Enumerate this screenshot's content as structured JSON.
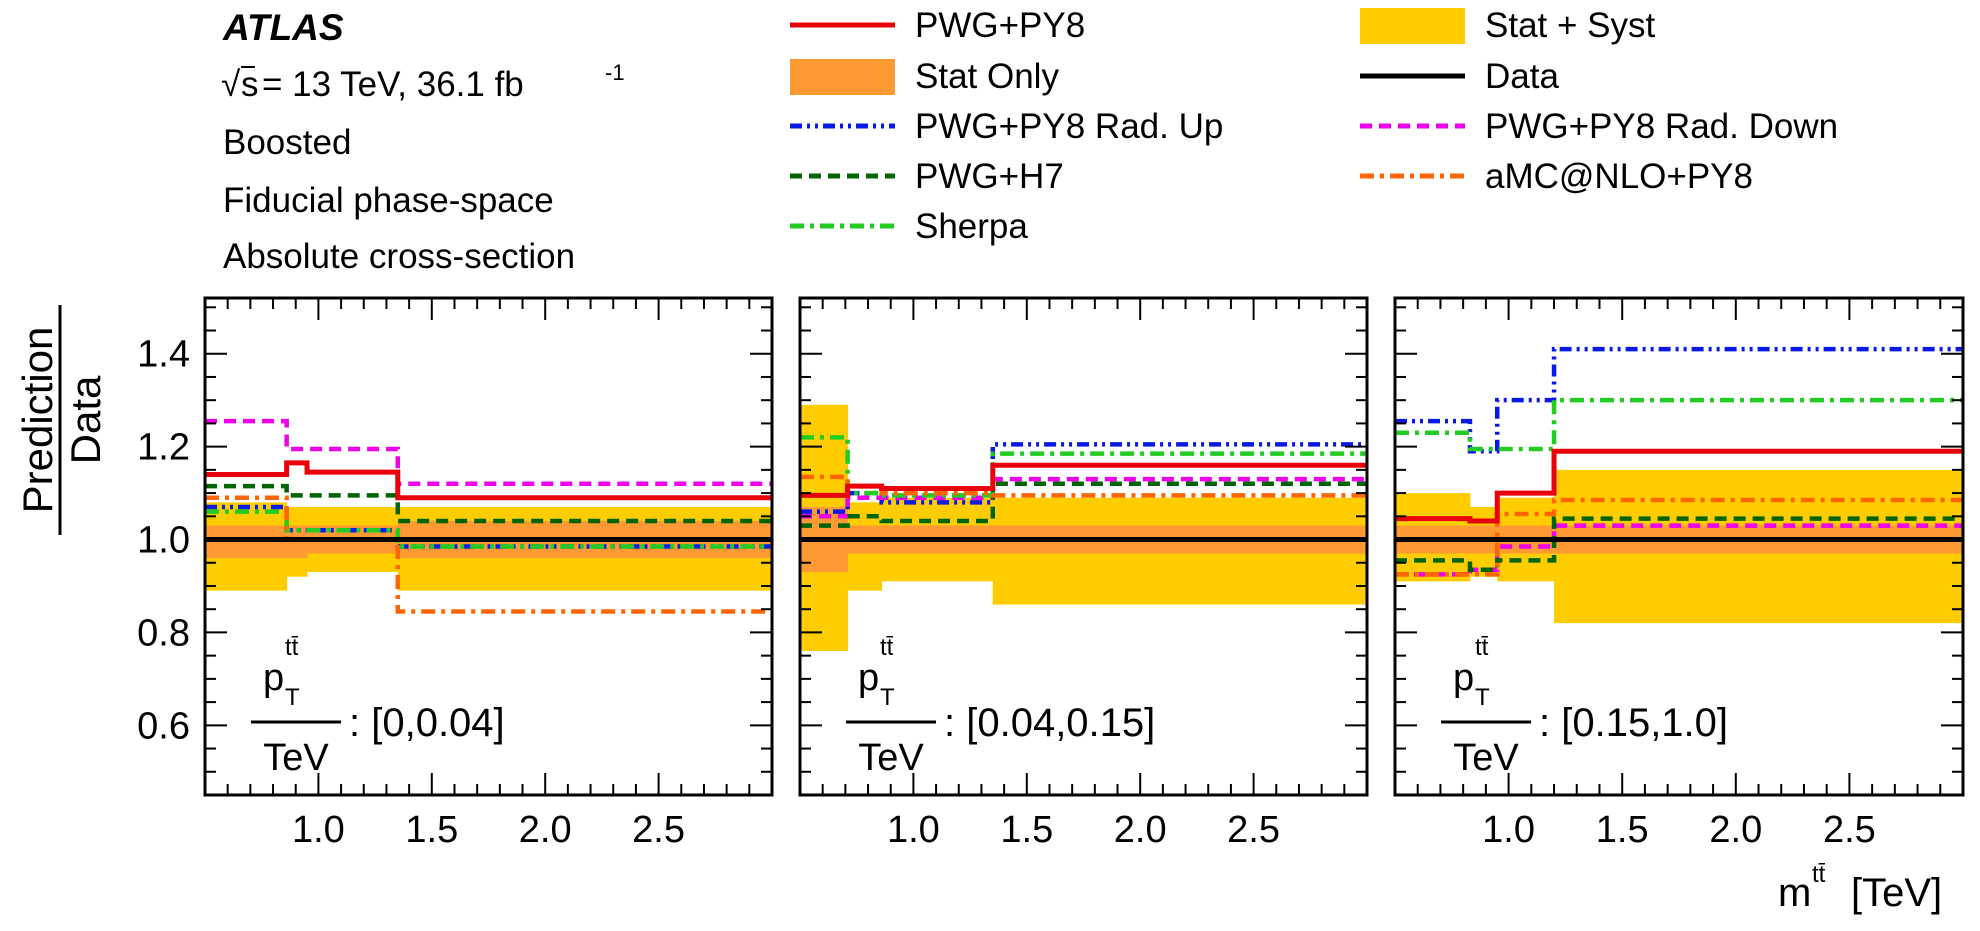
{
  "header": {
    "experiment": "ATLAS",
    "energy_prefix": "s",
    "energy_text": "= 13 TeV, 36.1 fb",
    "energy_exp": "-1",
    "lines": [
      "Boosted",
      "Fiducial phase-space",
      "Absolute cross-section"
    ]
  },
  "legend": [
    {
      "label": "PWG+PY8",
      "style": "solid",
      "color": "#e8000b"
    },
    {
      "label": "Stat Only",
      "style": "band",
      "color": "#ff9933"
    },
    {
      "label": "PWG+PY8 Rad. Up",
      "style": "dashdotdot",
      "color": "#0a1ae6"
    },
    {
      "label": "PWG+H7",
      "style": "dashed",
      "color": "#006400"
    },
    {
      "label": "Sherpa",
      "style": "dashdot",
      "color": "#22cc22"
    },
    {
      "label": "Stat + Syst",
      "style": "band",
      "color": "#ffcc00"
    },
    {
      "label": "Data",
      "style": "solid",
      "color": "#000000"
    },
    {
      "label": "PWG+PY8 Rad. Down",
      "style": "dashed",
      "color": "#ee00ee"
    },
    {
      "label": "aMC@NLO+PY8",
      "style": "dashdot",
      "color": "#ff6600"
    }
  ],
  "y_axis": {
    "label_top": "Prediction",
    "label_bottom": "Data"
  },
  "x_axis": {
    "label": "m",
    "label_sup": "tt̄",
    "unit": "[TeV]"
  },
  "chart_data": [
    {
      "type": "line",
      "xlim": [
        0.5,
        3.0
      ],
      "ylim": [
        0.45,
        1.52
      ],
      "xticks": [
        "1.0",
        "1.5",
        "2.0",
        "2.5"
      ],
      "yticks": [
        "0.6",
        "0.8",
        "1.0",
        "1.2",
        "1.4"
      ],
      "range_label": {
        "var": "p",
        "sub": "T",
        "sup": "tt̄",
        "unit": "TeV",
        "text": ": [0,0.04]"
      },
      "edges": [
        0.5,
        0.86,
        0.95,
        1.35,
        3.0
      ],
      "stat_syst": [
        [
          0.89,
          1.08
        ],
        [
          0.92,
          1.07
        ],
        [
          0.93,
          1.07
        ],
        [
          0.89,
          1.07
        ]
      ],
      "stat_only": [
        [
          0.96,
          1.03
        ],
        [
          0.96,
          1.03
        ],
        [
          0.97,
          1.03
        ],
        [
          0.96,
          1.04
        ]
      ],
      "series": [
        {
          "name": "PWG+PY8",
          "values": [
            1.14,
            1.165,
            1.145,
            1.09
          ]
        },
        {
          "name": "PWG+PY8 Rad. Up",
          "values": [
            1.07,
            1.02,
            1.02,
            0.985
          ]
        },
        {
          "name": "PWG+PY8 Rad. Down",
          "values": [
            1.255,
            1.195,
            1.195,
            1.12
          ]
        },
        {
          "name": "PWG+H7",
          "values": [
            1.115,
            1.095,
            1.095,
            1.04
          ]
        },
        {
          "name": "Sherpa",
          "values": [
            1.06,
            1.02,
            1.02,
            0.985
          ]
        },
        {
          "name": "aMC@NLO+PY8",
          "values": [
            1.09,
            1.0,
            1.0,
            0.845
          ]
        }
      ]
    },
    {
      "type": "line",
      "xlim": [
        0.5,
        3.0
      ],
      "ylim": [
        0.45,
        1.52
      ],
      "xticks": [
        "1.0",
        "1.5",
        "2.0",
        "2.5"
      ],
      "yticks": [
        "0.6",
        "0.8",
        "1.0",
        "1.2",
        "1.4"
      ],
      "range_label": {
        "var": "p",
        "sub": "T",
        "sup": "tt̄",
        "unit": "TeV",
        "text": ": [0.04,0.15]"
      },
      "edges": [
        0.5,
        0.71,
        0.86,
        0.95,
        1.35,
        3.0
      ],
      "stat_syst": [
        [
          0.76,
          1.29
        ],
        [
          0.89,
          1.08
        ],
        [
          0.91,
          1.09
        ],
        [
          0.91,
          1.09
        ],
        [
          0.86,
          1.09
        ]
      ],
      "stat_only": [
        [
          0.93,
          1.07
        ],
        [
          0.97,
          1.03
        ],
        [
          0.97,
          1.03
        ],
        [
          0.97,
          1.03
        ],
        [
          0.97,
          1.03
        ]
      ],
      "series": [
        {
          "name": "PWG+PY8",
          "values": [
            1.095,
            1.115,
            1.11,
            1.11,
            1.16
          ]
        },
        {
          "name": "PWG+PY8 Rad. Up",
          "values": [
            1.06,
            1.1,
            1.08,
            1.08,
            1.205
          ]
        },
        {
          "name": "PWG+PY8 Rad. Down",
          "values": [
            1.05,
            1.09,
            1.09,
            1.09,
            1.13
          ]
        },
        {
          "name": "PWG+H7",
          "values": [
            1.03,
            1.05,
            1.04,
            1.04,
            1.12
          ]
        },
        {
          "name": "Sherpa",
          "values": [
            1.22,
            1.1,
            1.095,
            1.095,
            1.185
          ]
        },
        {
          "name": "aMC@NLO+PY8",
          "values": [
            1.135,
            1.115,
            1.1,
            1.1,
            1.095
          ]
        }
      ]
    },
    {
      "type": "line",
      "xlim": [
        0.5,
        3.0
      ],
      "ylim": [
        0.45,
        1.52
      ],
      "xticks": [
        "1.0",
        "1.5",
        "2.0",
        "2.5"
      ],
      "yticks": [
        "0.6",
        "0.8",
        "1.0",
        "1.2",
        "1.4"
      ],
      "range_label": {
        "var": "p",
        "sub": "T",
        "sup": "tt̄",
        "unit": "TeV",
        "text": ": [0.15,1.0]"
      },
      "edges": [
        0.5,
        0.83,
        0.95,
        1.2,
        3.0
      ],
      "stat_syst": [
        [
          0.91,
          1.1
        ],
        [
          0.92,
          1.07
        ],
        [
          0.91,
          1.09
        ],
        [
          0.82,
          1.15
        ]
      ],
      "stat_only": [
        [
          0.97,
          1.03
        ],
        [
          0.97,
          1.03
        ],
        [
          0.97,
          1.03
        ],
        [
          0.97,
          1.03
        ]
      ],
      "series": [
        {
          "name": "PWG+PY8",
          "values": [
            1.045,
            1.04,
            1.1,
            1.19
          ]
        },
        {
          "name": "PWG+PY8 Rad. Up",
          "values": [
            1.255,
            1.19,
            1.3,
            1.41
          ]
        },
        {
          "name": "PWG+PY8 Rad. Down",
          "values": [
            0.925,
            0.935,
            0.985,
            1.03
          ]
        },
        {
          "name": "PWG+H7",
          "values": [
            0.955,
            0.935,
            0.955,
            1.045
          ]
        },
        {
          "name": "Sherpa",
          "values": [
            1.23,
            1.195,
            1.195,
            1.3
          ]
        },
        {
          "name": "aMC@NLO+PY8",
          "values": [
            0.925,
            0.925,
            1.055,
            1.085
          ]
        }
      ]
    }
  ]
}
